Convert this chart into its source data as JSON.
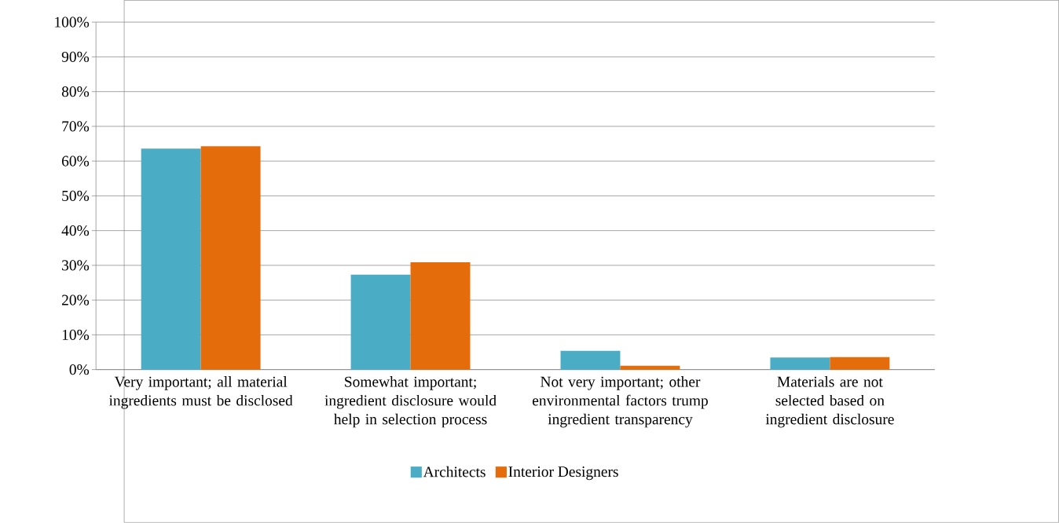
{
  "chart_data": {
    "type": "bar",
    "categories": [
      "Very important; all material ingredients must be disclosed",
      "Somewhat important; ingredient disclosure would help in selection process",
      "Not very important; other environmental factors trump ingredient transparency",
      "Materials are not selected based on ingredient disclosure"
    ],
    "series": [
      {
        "name": "Architects",
        "color": "#4bacc6",
        "values": [
          63.6,
          27.3,
          5.4,
          3.5
        ]
      },
      {
        "name": "Interior Designers",
        "color": "#e46c0a",
        "values": [
          64.3,
          30.9,
          1.1,
          3.6
        ]
      }
    ],
    "ylim": [
      0,
      100
    ],
    "yticks": [
      {
        "value": 0,
        "label": "0%"
      },
      {
        "value": 10,
        "label": "10%"
      },
      {
        "value": 20,
        "label": "20%"
      },
      {
        "value": 30,
        "label": "30%"
      },
      {
        "value": 40,
        "label": "40%"
      },
      {
        "value": 50,
        "label": "50%"
      },
      {
        "value": 60,
        "label": "60%"
      },
      {
        "value": 70,
        "label": "70%"
      },
      {
        "value": 80,
        "label": "80%"
      },
      {
        "value": 90,
        "label": "90%"
      },
      {
        "value": 100,
        "label": "100%"
      }
    ],
    "grid": "y",
    "legend": "bottom"
  }
}
